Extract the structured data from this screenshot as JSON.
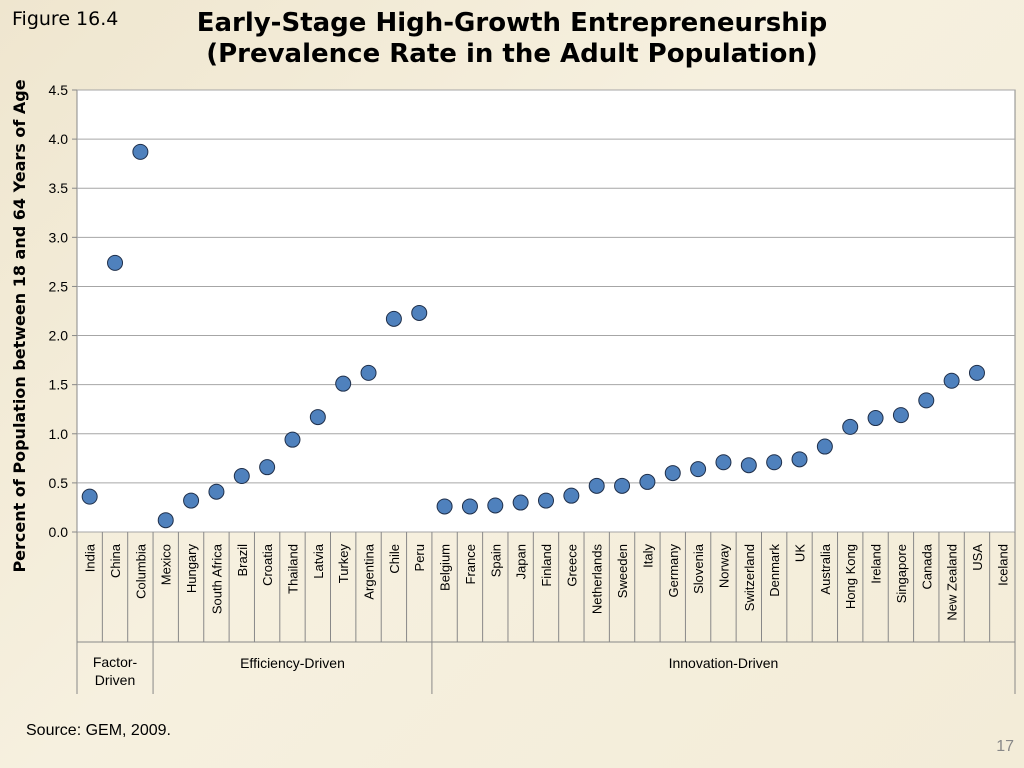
{
  "figure_label": "Figure 16.4",
  "title_line1": "Early-Stage High-Growth Entrepreneurship",
  "title_line2": "(Prevalence Rate in the Adult Population)",
  "source": "Source: GEM, 2009.",
  "page_number": "17",
  "chart_data": {
    "type": "scatter",
    "ylabel": "Percent of Population between 18 and 64 Years of Age",
    "ylim": [
      0,
      4.5
    ],
    "yticks": [
      "0.0",
      "0.5",
      "1.0",
      "1.5",
      "2.0",
      "2.5",
      "3.0",
      "3.5",
      "4.0",
      "4.5"
    ],
    "grid": true,
    "marker_color": "#4f81bd",
    "categories": [
      "India",
      "China",
      "Columbia",
      "Mexico",
      "Hungary",
      "South Africa",
      "Brazil",
      "Croatia",
      "Thailand",
      "Latvia",
      "Turkey",
      "Argentina",
      "Chile",
      "Peru",
      "Belgium",
      "France",
      "Spain",
      "Japan",
      "Finland",
      "Greece",
      "Netherlands",
      "Sweeden",
      "Italy",
      "Germany",
      "Slovenia",
      "Norway",
      "Switzerland",
      "Denmark",
      "UK",
      "Australia",
      "Hong Kong",
      "Ireland",
      "Singapore",
      "Canada",
      "New Zealand",
      "USA",
      "Iceland"
    ],
    "values": [
      0.36,
      2.74,
      3.87,
      0.12,
      0.32,
      0.41,
      0.57,
      0.66,
      0.94,
      1.17,
      1.51,
      1.62,
      2.17,
      2.23,
      0.26,
      0.26,
      0.27,
      0.3,
      0.32,
      0.37,
      0.47,
      0.47,
      0.51,
      0.6,
      0.64,
      0.71,
      0.68,
      0.71,
      0.74,
      0.87,
      1.07,
      1.16,
      1.19,
      1.34,
      1.54,
      1.62,
      null
    ],
    "groups": [
      {
        "label": "Factor-\nDriven",
        "start": 0,
        "end": 2
      },
      {
        "label": "Efficiency-Driven",
        "start": 3,
        "end": 13
      },
      {
        "label": "Innovation-Driven",
        "start": 14,
        "end": 36
      }
    ]
  }
}
